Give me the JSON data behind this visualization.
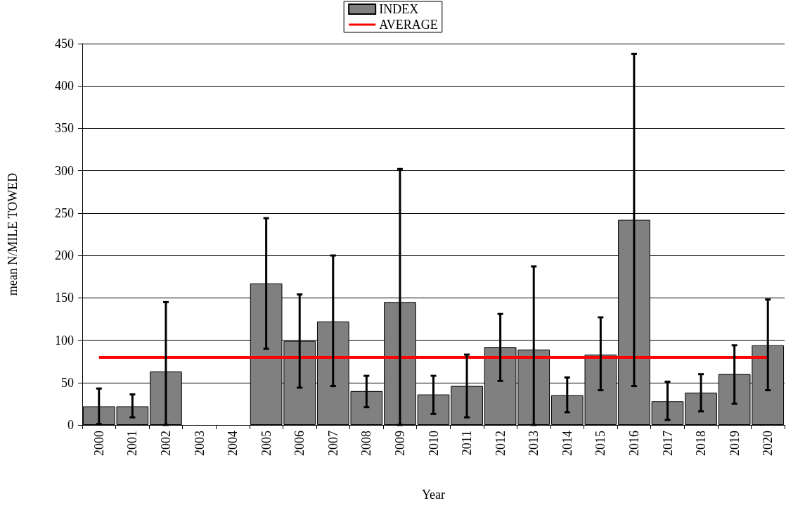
{
  "chart_data": {
    "type": "bar",
    "xlabel": "Year",
    "ylabel": "mean N/MILE TOWED",
    "categories": [
      "2000",
      "2001",
      "2002",
      "2003",
      "2004",
      "2005",
      "2006",
      "2007",
      "2008",
      "2009",
      "2010",
      "2011",
      "2012",
      "2013",
      "2014",
      "2015",
      "2016",
      "2017",
      "2018",
      "2019",
      "2020"
    ],
    "series": [
      {
        "name": "INDEX",
        "color": "#808080",
        "values": [
          22,
          22,
          63,
          null,
          null,
          167,
          99,
          122,
          40,
          145,
          36,
          46,
          92,
          89,
          35,
          83,
          242,
          28,
          38,
          60,
          94
        ],
        "errors": [
          [
            1,
            43
          ],
          [
            9,
            36
          ],
          [
            0,
            145
          ],
          null,
          null,
          [
            90,
            244
          ],
          [
            44,
            154
          ],
          [
            46,
            200
          ],
          [
            21,
            58
          ],
          [
            0,
            302
          ],
          [
            13,
            58
          ],
          [
            9,
            83
          ],
          [
            52,
            131
          ],
          [
            0,
            187
          ],
          [
            15,
            56
          ],
          [
            41,
            127
          ],
          [
            46,
            438
          ],
          [
            6,
            51
          ],
          [
            16,
            60
          ],
          [
            25,
            94
          ],
          [
            41,
            148
          ]
        ]
      }
    ],
    "ref_lines": [
      {
        "axis": "y",
        "value": 80,
        "label": "AVERAGE",
        "color": "#ff0000"
      }
    ],
    "ylim": [
      0,
      450
    ],
    "yticks": [
      0,
      50,
      100,
      150,
      200,
      250,
      300,
      350,
      400,
      450
    ],
    "grid": "y",
    "legend": "top"
  }
}
